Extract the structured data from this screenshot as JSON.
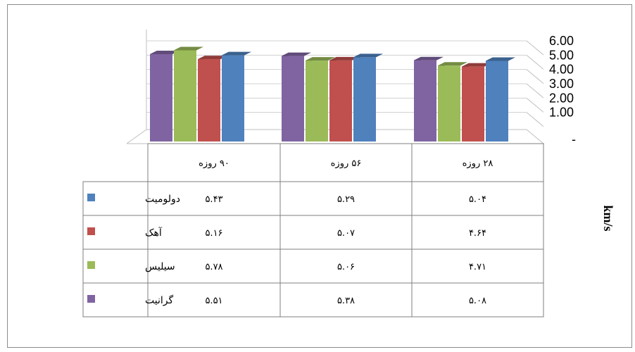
{
  "chart_data": {
    "type": "bar",
    "ylabel": "km/s",
    "ylim": [
      0,
      6
    ],
    "y_ticks": [
      "6.00",
      "5.00",
      "4.00",
      "3.00",
      "2.00",
      "1.00",
      "-"
    ],
    "categories": [
      "۹۰ روزه",
      "۵۶ روزه",
      "۲۸ روزه"
    ],
    "series": [
      {
        "name": "دولومیت",
        "color": "#4f81bd",
        "values": [
          5.43,
          5.29,
          5.04
        ],
        "labels": [
          "۵.۴۳",
          "۵.۲۹",
          "۵.۰۴"
        ]
      },
      {
        "name": "آهک",
        "color": "#c0504d",
        "values": [
          5.16,
          5.07,
          4.64
        ],
        "labels": [
          "۵.۱۶",
          "۵.۰۷",
          "۴.۶۴"
        ]
      },
      {
        "name": "سیلیس",
        "color": "#9bbb59",
        "values": [
          5.78,
          5.06,
          4.71
        ],
        "labels": [
          "۵.۷۸",
          "۵.۰۶",
          "۴.۷۱"
        ]
      },
      {
        "name": "گرانیت",
        "color": "#8064a2",
        "values": [
          5.51,
          5.38,
          5.08
        ],
        "labels": [
          "۵.۵۱",
          "۵.۳۸",
          "۵.۰۸"
        ]
      }
    ],
    "grid": true,
    "legend": "data-table-left"
  }
}
